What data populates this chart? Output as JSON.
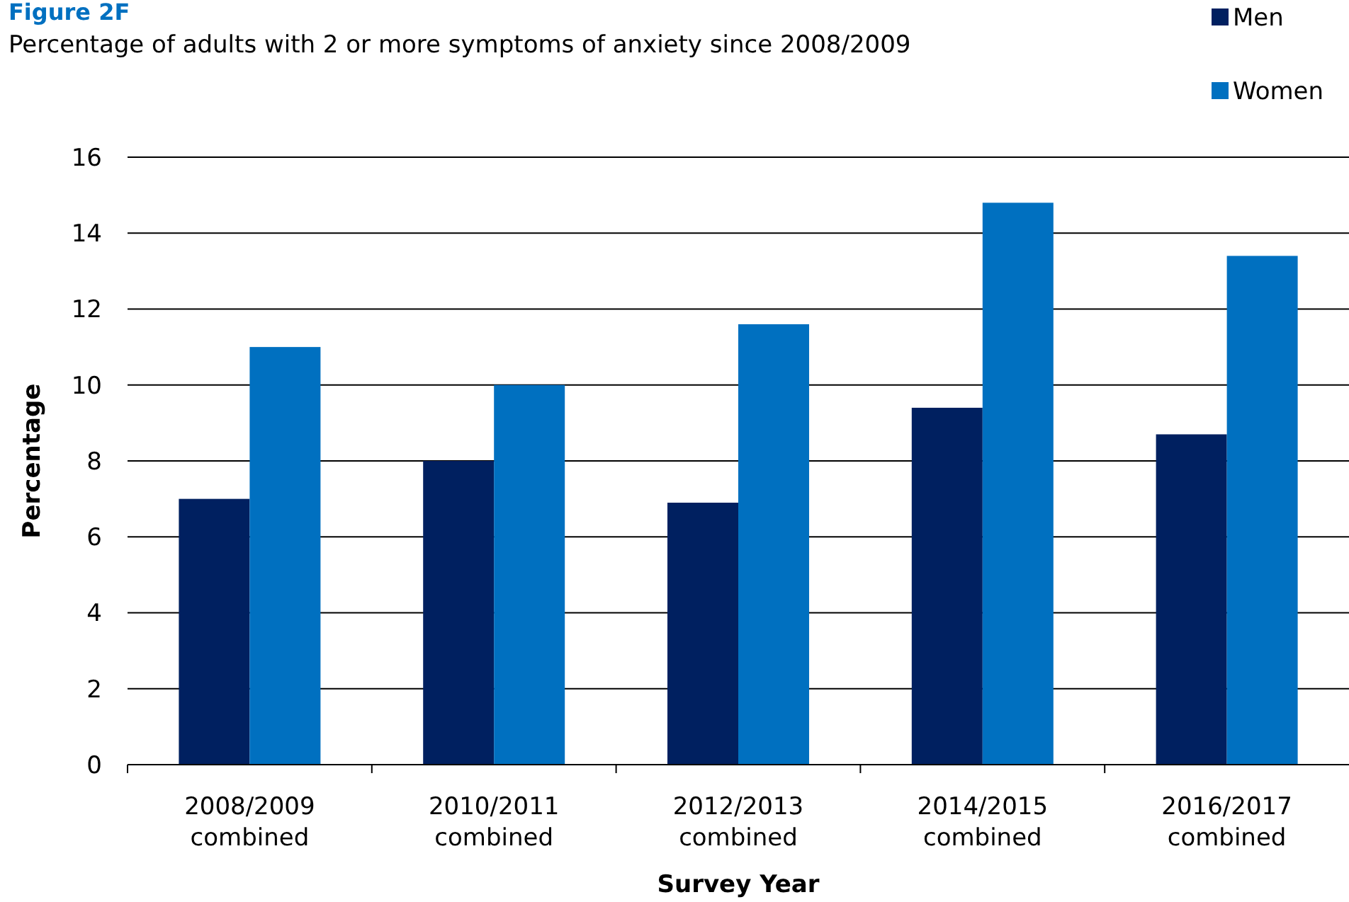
{
  "chart_data": {
    "type": "bar",
    "title": "Figure  2F",
    "subtitle": "Percentage of adults with 2 or more symptoms of anxiety since 2008/2009",
    "xlabel": "Survey Year",
    "ylabel": "Percentage",
    "categories": [
      "2008/2009 combined",
      "2010/2011 combined",
      "2012/2013 combined",
      "2014/2015 combined",
      "2016/2017 combined"
    ],
    "series": [
      {
        "name": "Men",
        "color": "#002060",
        "values": [
          7.0,
          8.0,
          6.9,
          9.4,
          8.7
        ]
      },
      {
        "name": "Women",
        "color": "#0070c0",
        "values": [
          11.0,
          10.0,
          11.6,
          14.8,
          13.4
        ]
      }
    ],
    "ylim": [
      0,
      16
    ],
    "yticks": [
      0,
      2,
      4,
      6,
      8,
      10,
      12,
      14,
      16
    ],
    "grid": "y",
    "legend": "top right"
  }
}
